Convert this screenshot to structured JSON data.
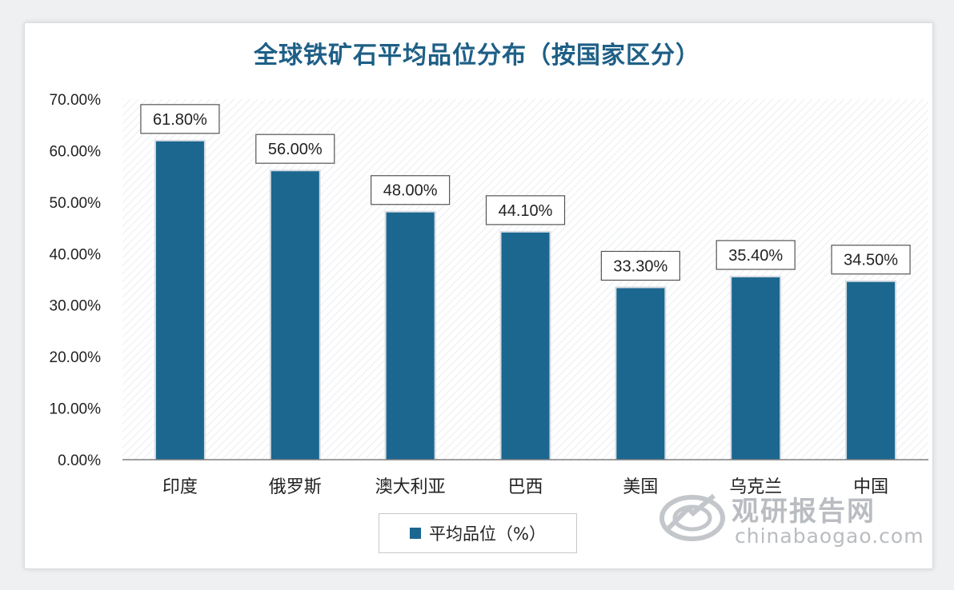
{
  "chart_data": {
    "type": "bar",
    "title": "全球铁矿石平均品位分布（按国家区分）",
    "categories": [
      "印度",
      "俄罗斯",
      "澳大利亚",
      "巴西",
      "美国",
      "乌克兰",
      "中国"
    ],
    "series": [
      {
        "name": "平均品位（%）",
        "values": [
          61.8,
          56.0,
          48.0,
          44.1,
          33.3,
          35.4,
          34.5
        ],
        "labels": [
          "61.80%",
          "56.00%",
          "48.00%",
          "44.10%",
          "33.30%",
          "35.40%",
          "34.50%"
        ]
      }
    ],
    "ylim": [
      0,
      70
    ],
    "yticks": [
      "0.00%",
      "10.00%",
      "20.00%",
      "30.00%",
      "40.00%",
      "50.00%",
      "60.00%",
      "70.00%"
    ],
    "grid": false,
    "legend_position": "bottom",
    "bar_color": "#1b6790"
  },
  "legend": {
    "label": "平均品位（%）"
  },
  "watermark": {
    "brand": "观研报告网",
    "url": "chinabaogao.com"
  }
}
